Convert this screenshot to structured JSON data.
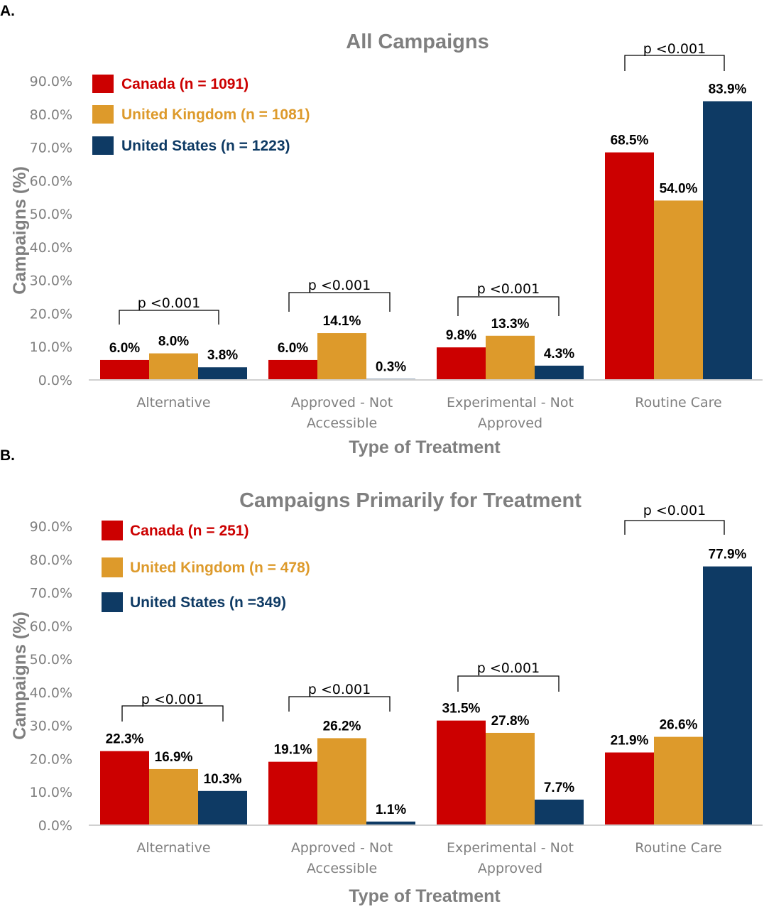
{
  "chart_data": [
    {
      "panel": "A.",
      "type": "bar",
      "title": "All Campaigns",
      "xlabel": "Type of Treatment",
      "ylabel": "Campaigns (%)",
      "ylim": [
        0,
        90
      ],
      "yticks": [
        "0.0%",
        "10.0%",
        "20.0%",
        "30.0%",
        "40.0%",
        "50.0%",
        "60.0%",
        "70.0%",
        "80.0%",
        "90.0%"
      ],
      "categories": [
        [
          "Alternative"
        ],
        [
          "Approved - Not",
          "Accessible"
        ],
        [
          "Experimental - Not",
          "Approved"
        ],
        [
          "Routine Care"
        ]
      ],
      "series": [
        {
          "name": "Canada (n = 1091)",
          "color": "#cc0000",
          "values": [
            6.0,
            6.0,
            9.8,
            68.5
          ],
          "labels": [
            "6.0%",
            "6.0%",
            "9.8%",
            "68.5%"
          ]
        },
        {
          "name": "United Kingdom (n = 1081)",
          "color": "#dd9a2b",
          "values": [
            8.0,
            14.1,
            13.3,
            54.0
          ],
          "labels": [
            "8.0%",
            "14.1%",
            "13.3%",
            "54.0%"
          ]
        },
        {
          "name": "United States (n = 1223)",
          "color": "#0e3a64",
          "values": [
            3.8,
            0.3,
            4.3,
            83.9
          ],
          "labels": [
            "3.8%",
            "0.3%",
            "4.3%",
            "83.9%"
          ]
        }
      ],
      "significance": [
        "p <0.001",
        "p <0.001",
        "p <0.001",
        "p <0.001"
      ],
      "legend": "top-left",
      "grid": false
    },
    {
      "panel": "B.",
      "type": "bar",
      "title": "Campaigns Primarily for Treatment",
      "xlabel": "Type of Treatment",
      "ylabel": "Campaigns (%)",
      "ylim": [
        0,
        90
      ],
      "yticks": [
        "0.0%",
        "10.0%",
        "20.0%",
        "30.0%",
        "40.0%",
        "50.0%",
        "60.0%",
        "70.0%",
        "80.0%",
        "90.0%"
      ],
      "categories": [
        [
          "Alternative"
        ],
        [
          "Approved - Not",
          "Accessible"
        ],
        [
          "Experimental - Not",
          "Approved"
        ],
        [
          "Routine Care"
        ]
      ],
      "series": [
        {
          "name": "Canada (n = 251)",
          "color": "#cc0000",
          "values": [
            22.3,
            19.1,
            31.5,
            21.9
          ],
          "labels": [
            "22.3%",
            "19.1%",
            "31.5%",
            "21.9%"
          ]
        },
        {
          "name": "United Kingdom (n = 478)",
          "color": "#dd9a2b",
          "values": [
            16.9,
            26.2,
            27.8,
            26.6
          ],
          "labels": [
            "16.9%",
            "26.2%",
            "27.8%",
            "26.6%"
          ]
        },
        {
          "name": "United States (n =349)",
          "color": "#0e3a64",
          "values": [
            10.3,
            1.1,
            7.7,
            77.9
          ],
          "labels": [
            "10.3%",
            "1.1%",
            "7.7%",
            "77.9%"
          ]
        }
      ],
      "significance": [
        "p <0.001",
        "p <0.001",
        "p <0.001",
        "p <0.001"
      ],
      "legend": "top-left",
      "grid": false
    }
  ]
}
